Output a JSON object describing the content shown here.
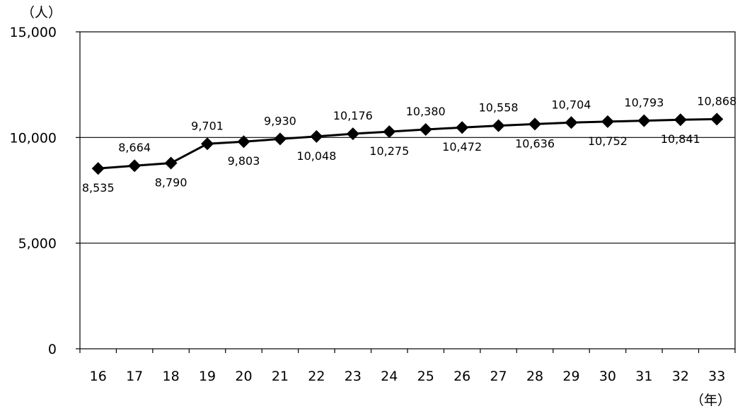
{
  "chart_data": {
    "type": "line",
    "categories": [
      "16",
      "17",
      "18",
      "19",
      "20",
      "21",
      "22",
      "23",
      "24",
      "25",
      "26",
      "27",
      "28",
      "29",
      "30",
      "31",
      "32",
      "33"
    ],
    "series": [
      {
        "values": [
          8535,
          8664,
          8790,
          9701,
          9803,
          9930,
          10048,
          10176,
          10275,
          10380,
          10472,
          10558,
          10636,
          10704,
          10752,
          10793,
          10841,
          10868
        ],
        "labels": [
          "8,535",
          "8,664",
          "8,790",
          "9,701",
          "9,803",
          "9,930",
          "10,048",
          "10,176",
          "10,275",
          "10,380",
          "10,472",
          "10,558",
          "10,636",
          "10,704",
          "10,752",
          "10,793",
          "10,841",
          "10,868"
        ],
        "label_position": [
          "below",
          "above",
          "below",
          "above",
          "below",
          "above",
          "below",
          "above",
          "below",
          "above",
          "below",
          "above",
          "below",
          "above",
          "below",
          "above",
          "below",
          "above"
        ],
        "color": "#000000",
        "marker": "diamond"
      }
    ],
    "yticks": [
      0,
      5000,
      10000,
      15000
    ],
    "ytick_labels": [
      "0",
      "5,000",
      "10,000",
      "15,000"
    ],
    "ylim": [
      0,
      15000
    ],
    "y_unit": "（人）",
    "x_unit": "（年）",
    "grid": "horizontal"
  }
}
